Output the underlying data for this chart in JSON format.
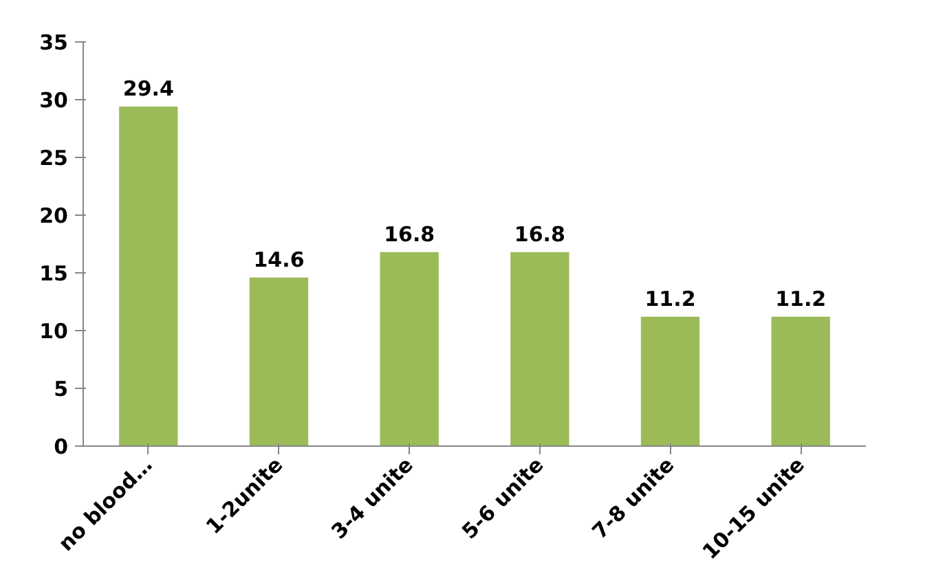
{
  "chart_data": {
    "type": "bar",
    "categories": [
      "no blood…",
      "1-2unite",
      "3-4 unite",
      "5-6 unite",
      "7-8 unite",
      "10-15 unite"
    ],
    "values": [
      29.4,
      14.6,
      16.8,
      16.8,
      11.2,
      11.2
    ],
    "color": "#9bbb59",
    "ylim": [
      0,
      35
    ],
    "yticks": [
      0,
      5,
      10,
      15,
      20,
      25,
      30,
      35
    ],
    "grid": false,
    "data_labels": true
  }
}
